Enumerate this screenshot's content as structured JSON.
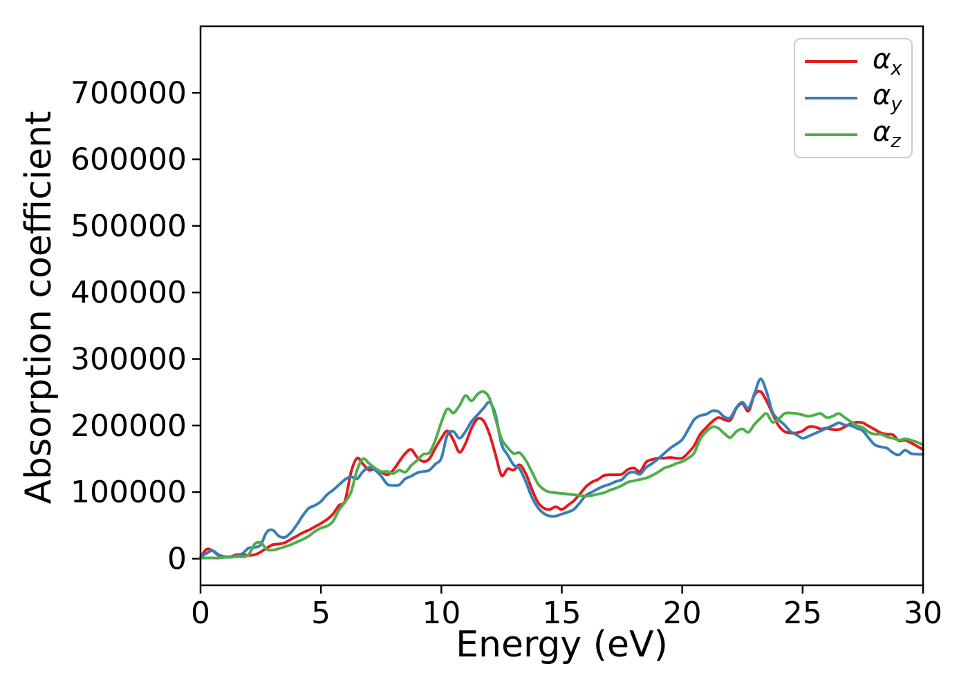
{
  "chart_data": {
    "type": "line",
    "title": "",
    "xlabel": "Energy (eV)",
    "ylabel": "Absorption coefficient",
    "xlim": [
      0,
      30
    ],
    "ylim": [
      -40000,
      800000
    ],
    "x_ticks": [
      0,
      5,
      10,
      15,
      20,
      25,
      30
    ],
    "y_ticks": [
      0,
      100000,
      200000,
      300000,
      400000,
      500000,
      600000,
      700000
    ],
    "grid": false,
    "legend_position": "upper right",
    "background": "#ffffff",
    "axis_color": "#000000",
    "x": [
      0,
      0.25,
      0.5,
      0.75,
      1,
      1.25,
      1.5,
      1.75,
      2,
      2.25,
      2.5,
      2.75,
      3,
      3.25,
      3.5,
      3.75,
      4,
      4.25,
      4.5,
      4.75,
      5,
      5.25,
      5.5,
      5.75,
      6,
      6.25,
      6.5,
      6.75,
      7,
      7.25,
      7.5,
      7.75,
      8,
      8.25,
      8.5,
      8.75,
      9,
      9.25,
      9.5,
      9.75,
      10,
      10.25,
      10.5,
      10.75,
      11,
      11.25,
      11.5,
      11.75,
      12,
      12.25,
      12.5,
      12.75,
      13,
      13.25,
      13.5,
      13.75,
      14,
      14.25,
      14.5,
      14.75,
      15,
      15.25,
      15.5,
      15.75,
      16,
      16.25,
      16.5,
      16.75,
      17,
      17.25,
      17.5,
      17.75,
      18,
      18.25,
      18.5,
      18.75,
      19,
      19.25,
      19.5,
      19.75,
      20,
      20.25,
      20.5,
      20.75,
      21,
      21.25,
      21.5,
      21.75,
      22,
      22.25,
      22.5,
      22.75,
      23,
      23.25,
      23.5,
      23.75,
      24,
      24.25,
      24.5,
      24.75,
      25,
      25.25,
      25.5,
      25.75,
      26,
      26.25,
      26.5,
      26.75,
      27,
      27.25,
      27.5,
      27.75,
      28,
      28.25,
      28.5,
      28.75,
      29,
      29.25,
      29.5,
      29.75,
      30
    ],
    "series": [
      {
        "name": "alpha_x",
        "label_symbol": "α",
        "label_sub": "x",
        "color": "#e41a1c",
        "values": [
          2000,
          14000,
          12000,
          5000,
          3000,
          3000,
          6000,
          6000,
          5000,
          6000,
          10000,
          16000,
          21000,
          22000,
          24000,
          29000,
          34000,
          39000,
          43000,
          48000,
          53000,
          59000,
          67000,
          80000,
          87000,
          130000,
          151000,
          142000,
          133000,
          135000,
          130000,
          126000,
          133000,
          146000,
          158000,
          164000,
          152000,
          146000,
          150000,
          166000,
          181000,
          192000,
          178000,
          160000,
          173000,
          196000,
          210000,
          207000,
          187000,
          156000,
          125000,
          135000,
          133000,
          141000,
          128000,
          105000,
          85000,
          76000,
          74000,
          78000,
          74000,
          80000,
          87000,
          97000,
          108000,
          115000,
          119000,
          125000,
          126000,
          126000,
          127000,
          134000,
          136000,
          131000,
          145000,
          149000,
          151000,
          151000,
          152000,
          151000,
          151000,
          159000,
          170000,
          187000,
          197000,
          206000,
          212000,
          209000,
          208000,
          226000,
          233000,
          222000,
          246000,
          251000,
          237000,
          218000,
          200000,
          191000,
          189000,
          189000,
          192000,
          198000,
          198000,
          195000,
          196000,
          194000,
          194000,
          198000,
          203000,
          205000,
          204000,
          199000,
          194000,
          189000,
          187000,
          186000,
          177000,
          178000,
          174000,
          169000,
          164000
        ]
      },
      {
        "name": "alpha_y",
        "label_symbol": "α",
        "label_sub": "y",
        "color": "#377eb8",
        "values": [
          2000,
          8000,
          12000,
          6000,
          3000,
          3000,
          4000,
          8000,
          16000,
          17000,
          21000,
          40000,
          43000,
          34000,
          32000,
          39000,
          51000,
          65000,
          76000,
          80000,
          86000,
          96000,
          103000,
          111000,
          119000,
          123000,
          120000,
          131000,
          137000,
          133000,
          124000,
          112000,
          110000,
          111000,
          120000,
          124000,
          129000,
          131000,
          133000,
          142000,
          151000,
          186000,
          191000,
          181000,
          191000,
          206000,
          216000,
          226000,
          235000,
          216000,
          172000,
          156000,
          141000,
          135000,
          116000,
          93000,
          77000,
          68000,
          64000,
          64000,
          67000,
          70000,
          74000,
          84000,
          95000,
          100000,
          105000,
          109000,
          112000,
          116000,
          119000,
          128000,
          130000,
          127000,
          137000,
          143000,
          150000,
          158000,
          166000,
          172000,
          179000,
          194000,
          209000,
          215000,
          217000,
          222000,
          221000,
          213000,
          212000,
          227000,
          235000,
          226000,
          248000,
          270000,
          251000,
          220000,
          209000,
          201000,
          191000,
          186000,
          181000,
          184000,
          188000,
          192000,
          196000,
          200000,
          204000,
          201000,
          200000,
          196000,
          192000,
          181000,
          171000,
          168000,
          166000,
          159000,
          156000,
          163000,
          158000,
          157000,
          157000
        ]
      },
      {
        "name": "alpha_z",
        "label_symbol": "α",
        "label_sub": "z",
        "color": "#4daf4a",
        "values": [
          1000,
          1000,
          1000,
          1000,
          2000,
          2000,
          3000,
          3000,
          6000,
          22000,
          24000,
          14000,
          13000,
          15000,
          18000,
          21000,
          25000,
          29000,
          34000,
          41000,
          46000,
          49000,
          56000,
          73000,
          85000,
          100000,
          133000,
          150000,
          143000,
          136000,
          131000,
          131000,
          128000,
          133000,
          130000,
          140000,
          148000,
          157000,
          159000,
          178000,
          205000,
          225000,
          219000,
          230000,
          245000,
          237000,
          247000,
          251000,
          241000,
          210000,
          180000,
          167000,
          158000,
          159000,
          148000,
          131000,
          113000,
          104000,
          100000,
          99000,
          98000,
          97000,
          96000,
          95000,
          94000,
          95000,
          97000,
          99000,
          103000,
          106000,
          110000,
          115000,
          117000,
          119000,
          121000,
          125000,
          130000,
          136000,
          139000,
          143000,
          146000,
          151000,
          159000,
          180000,
          191000,
          198000,
          196000,
          188000,
          182000,
          191000,
          195000,
          190000,
          202000,
          211000,
          218000,
          205000,
          210000,
          218000,
          219000,
          218000,
          216000,
          214000,
          216000,
          218000,
          212000,
          214000,
          218000,
          212000,
          206000,
          200000,
          197000,
          190000,
          187000,
          187000,
          183000,
          181000,
          178000,
          180000,
          178000,
          175000,
          171000
        ]
      }
    ]
  }
}
